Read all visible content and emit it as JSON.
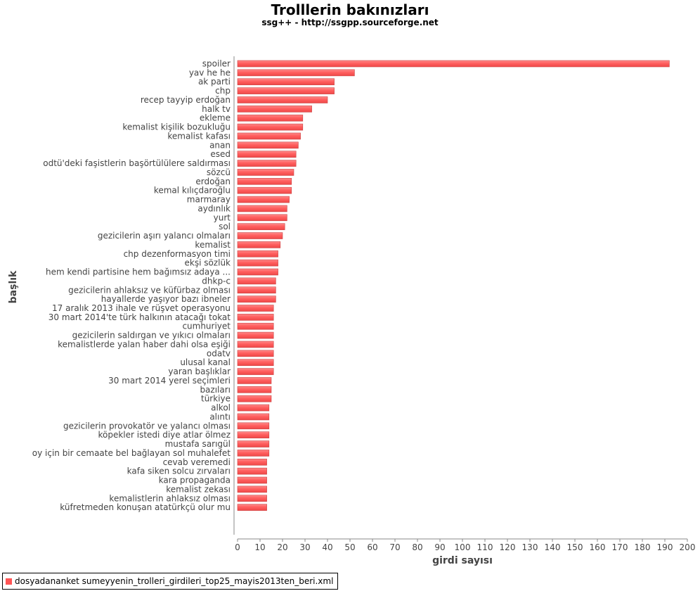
{
  "chart_data": {
    "type": "bar",
    "orientation": "horizontal",
    "title": "Trolllerin bakınızları",
    "subtitle": "ssg++ - http://ssgpp.sourceforge.net",
    "xlabel": "girdi sayısı",
    "ylabel": "başlık",
    "xlim": [
      0,
      200
    ],
    "xticks": [
      0,
      10,
      20,
      30,
      40,
      50,
      60,
      70,
      80,
      90,
      100,
      110,
      120,
      130,
      140,
      150,
      160,
      170,
      180,
      190,
      200
    ],
    "grid": false,
    "legend_position": "bottom-left",
    "bar_color": "#ff5555",
    "categories": [
      "spoiler",
      "yav he he",
      "ak parti",
      "chp",
      "recep tayyip erdoğan",
      "halk tv",
      "ekleme",
      "kemalist kişilik bozukluğu",
      "kemalist kafası",
      "anan",
      "esed",
      "odtü'deki faşistlerin başörtülülere saldırması",
      "sözcü",
      "erdoğan",
      "kemal kılıçdaroğlu",
      "marmaray",
      "aydınlık",
      "yurt",
      "sol",
      "gezicilerin aşırı yalancı olmaları",
      "kemalist",
      "chp dezenformasyon timi",
      "ekşi sözlük",
      "hem kendi partisine hem bağımsız adaya ...",
      "dhkp-c",
      "gezicilerin ahlaksız ve küfürbaz olması",
      "hayallerde yaşıyor bazı ibneler",
      "17 aralık 2013 ihale ve rüşvet operasyonu",
      "30 mart 2014'te türk halkının atacağı tokat",
      "cumhuriyet",
      "gezicilerin saldırgan ve yıkıcı olmaları",
      "kemalistlerde yalan haber dahi olsa eşiği",
      "odatv",
      "ulusal kanal",
      "yaran başlıklar",
      "30 mart 2014 yerel seçimleri",
      "bazıları",
      "türkiye",
      "alkol",
      "alıntı",
      "gezicilerin provokatör ve yalancı olması",
      "köpekler istedi diye atlar ölmez",
      "mustafa sarıgül",
      "oy için bir cemaate bel bağlayan sol muhalefet",
      "cevab veremedi",
      "kafa siken solcu zırvaları",
      "kara propaganda",
      "kemalist zekası",
      "kemalistlerin ahlaksız olması",
      "küfretmeden konuşan atatürkçü olur mu"
    ],
    "series": [
      {
        "name": "dosyadananket sumeyyenin_trolleri_girdileri_top25_mayis2013ten_beri.xml",
        "values": [
          192,
          52,
          43,
          43,
          40,
          33,
          29,
          29,
          28,
          27,
          26,
          26,
          25,
          24,
          24,
          23,
          22,
          22,
          21,
          20,
          19,
          18,
          18,
          18,
          17,
          17,
          17,
          16,
          16,
          16,
          16,
          16,
          16,
          16,
          16,
          15,
          15,
          15,
          14,
          14,
          14,
          14,
          14,
          14,
          13,
          13,
          13,
          13,
          13,
          13
        ]
      }
    ]
  }
}
